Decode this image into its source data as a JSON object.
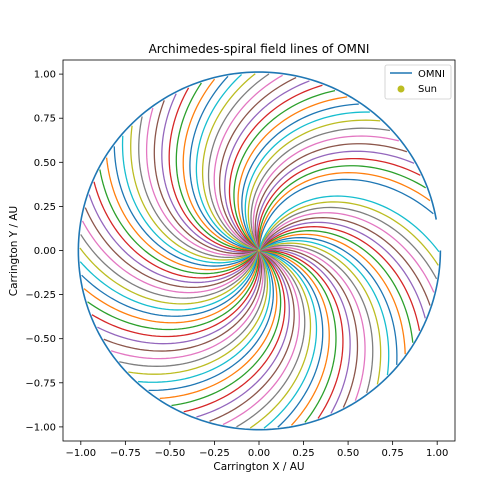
{
  "chart_data": {
    "type": "line",
    "title": "Archimedes-spiral field lines of OMNI",
    "xlabel": "Carrington X / AU",
    "ylabel": "Carrington Y / AU",
    "xlim": [
      -1.1,
      1.1
    ],
    "ylim": [
      -1.08,
      1.08
    ],
    "x_ticks": [
      "−1.00",
      "−0.75",
      "−0.50",
      "−0.25",
      "0.00",
      "0.25",
      "0.50",
      "0.75",
      "1.00"
    ],
    "x_tick_values": [
      -1.0,
      -0.75,
      -0.5,
      -0.25,
      0.0,
      0.25,
      0.5,
      0.75,
      1.0
    ],
    "y_ticks": [
      "−1.00",
      "−0.75",
      "−0.50",
      "−0.25",
      "0.00",
      "0.25",
      "0.50",
      "0.75",
      "1.00"
    ],
    "y_tick_values": [
      -1.0,
      -0.75,
      -0.5,
      -0.25,
      0.0,
      0.25,
      0.5,
      0.75,
      1.0
    ],
    "grid": false,
    "legend": {
      "position": "top-right",
      "entries": [
        {
          "name": "OMNI",
          "kind": "line",
          "color": "#1f77b4"
        },
        {
          "name": "Sun",
          "kind": "marker",
          "color": "#bcbd22"
        }
      ]
    },
    "orbit": {
      "name": "OMNI",
      "color": "#1f77b4",
      "radius_au_start": 1.01,
      "radius_au_end": 1.018,
      "phase_start_deg": 10,
      "sweep_deg": 350
    },
    "spirals": {
      "count": 80,
      "turns_to_1au_deg": 75,
      "rotation": "clockwise-outward",
      "first_footpoint_deg": 12,
      "step_deg": 4.4,
      "colors": [
        "#1f77b4",
        "#ff7f0e",
        "#2ca02c",
        "#d62728",
        "#9467bd",
        "#8c564b",
        "#e377c2",
        "#7f7f7f",
        "#bcbd22",
        "#17becf"
      ]
    },
    "sun": {
      "name": "Sun",
      "x": 0.0,
      "y": 0.0,
      "color": "#bcbd22"
    }
  }
}
